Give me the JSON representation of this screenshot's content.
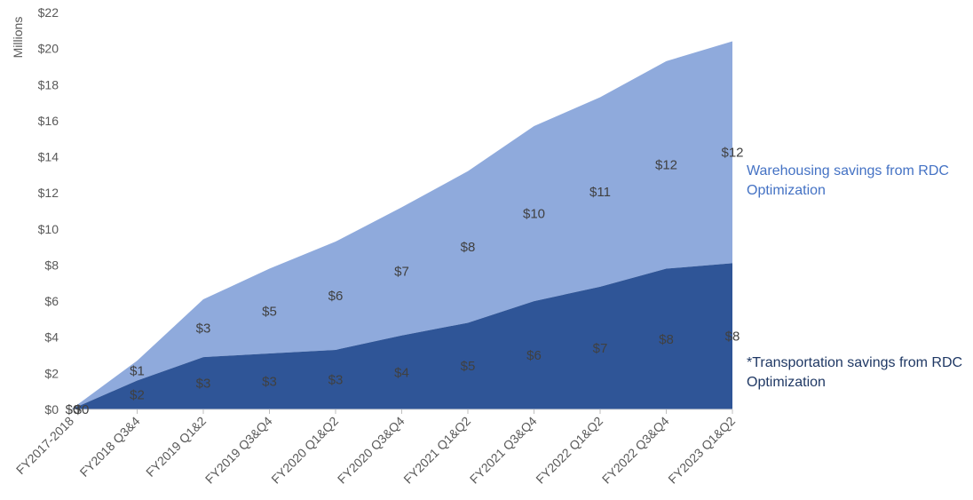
{
  "chart_data": {
    "type": "area",
    "stacked": true,
    "ylabel": "Millions",
    "ylim": [
      0,
      22
    ],
    "y_tick_step": 2,
    "y_tick_format": "$",
    "categories": [
      "FY2017-2018",
      "FY2018 Q3&4",
      "FY2019 Q1&2",
      "FY2019 Q3&Q4",
      "FY2020 Q1&Q2",
      "FY2020 Q3&Q4",
      "FY2021 Q1&Q2",
      "FY2021 Q3&Q4",
      "FY2022 Q1&Q2",
      "FY2022 Q3&Q4",
      "FY2023 Q1&Q2"
    ],
    "series": [
      {
        "name": "*Transportation savings from RDC Optimization",
        "color": "#2F5597",
        "values": [
          0,
          1.6,
          2.9,
          3.1,
          3.3,
          4.1,
          4.8,
          6.0,
          6.8,
          7.8,
          8.1
        ],
        "labels": [
          "$0",
          "$2",
          "$3",
          "$3",
          "$3",
          "$4",
          "$5",
          "$6",
          "$7",
          "$8",
          "$8"
        ]
      },
      {
        "name": "Warehousing savings from RDC Optimization",
        "color": "#8FAADC",
        "values": [
          0,
          1.1,
          3.2,
          4.7,
          6.0,
          7.1,
          8.4,
          9.7,
          10.5,
          11.5,
          12.3
        ],
        "labels": [
          "$0",
          "$1",
          "$3",
          "$5",
          "$6",
          "$7",
          "$8",
          "$10",
          "$11",
          "$12",
          "$12"
        ]
      }
    ],
    "legend_placement": "right",
    "grid": false
  }
}
